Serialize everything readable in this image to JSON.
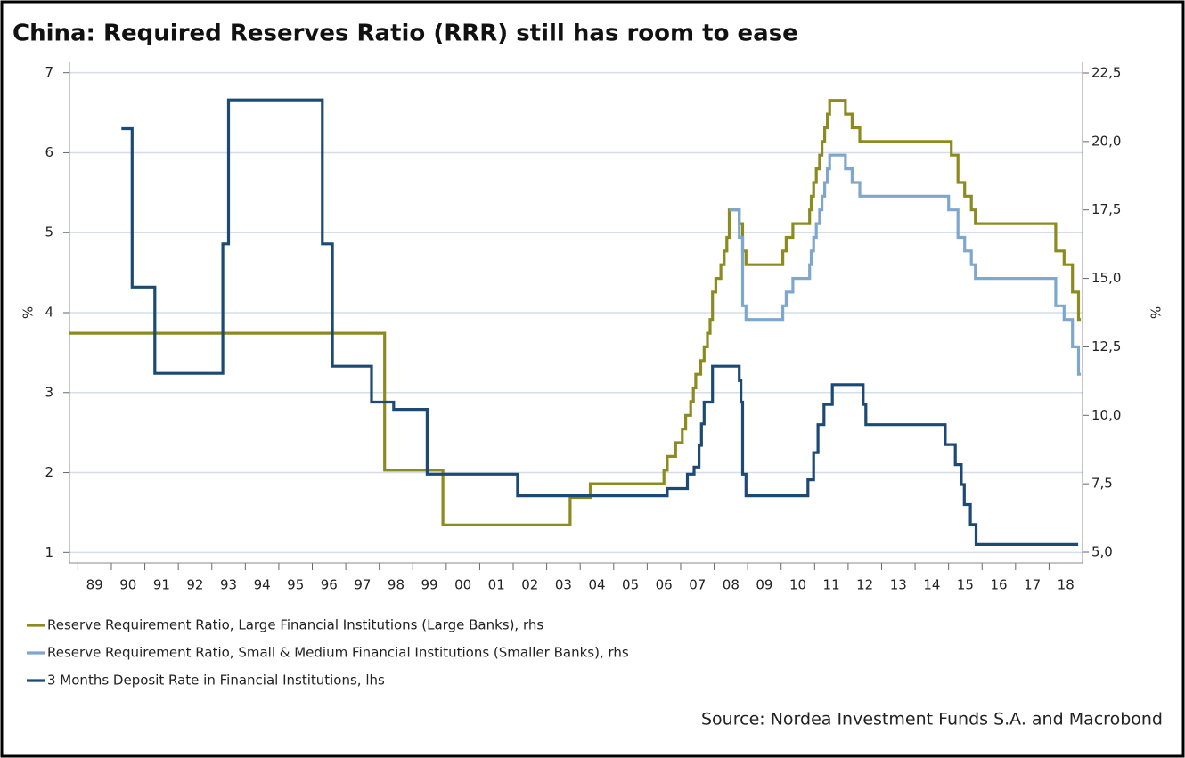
{
  "chart_data": {
    "type": "line",
    "title": "China: Required Reserves Ratio (RRR) still has room to ease",
    "source": "Source: Nordea Investment Funds S.A. and Macrobond",
    "ylabel": "%",
    "y2label": "%",
    "xlim": [
      1988.75,
      2019
    ],
    "ylim": [
      0.87,
      7.13
    ],
    "y2lim": [
      4.61,
      22.89
    ],
    "grid": true,
    "step": true,
    "xticks": [
      {
        "value": 1989,
        "label": "89"
      },
      {
        "value": 1990,
        "label": "90"
      },
      {
        "value": 1991,
        "label": "91"
      },
      {
        "value": 1992,
        "label": "92"
      },
      {
        "value": 1993,
        "label": "93"
      },
      {
        "value": 1994,
        "label": "94"
      },
      {
        "value": 1995,
        "label": "95"
      },
      {
        "value": 1996,
        "label": "96"
      },
      {
        "value": 1997,
        "label": "97"
      },
      {
        "value": 1998,
        "label": "98"
      },
      {
        "value": 1999,
        "label": "99"
      },
      {
        "value": 2000,
        "label": "00"
      },
      {
        "value": 2001,
        "label": "01"
      },
      {
        "value": 2002,
        "label": "02"
      },
      {
        "value": 2003,
        "label": "03"
      },
      {
        "value": 2004,
        "label": "04"
      },
      {
        "value": 2005,
        "label": "05"
      },
      {
        "value": 2006,
        "label": "06"
      },
      {
        "value": 2007,
        "label": "07"
      },
      {
        "value": 2008,
        "label": "08"
      },
      {
        "value": 2009,
        "label": "09"
      },
      {
        "value": 2010,
        "label": "10"
      },
      {
        "value": 2011,
        "label": "11"
      },
      {
        "value": 2012,
        "label": "12"
      },
      {
        "value": 2013,
        "label": "13"
      },
      {
        "value": 2014,
        "label": "14"
      },
      {
        "value": 2015,
        "label": "15"
      },
      {
        "value": 2016,
        "label": "16"
      },
      {
        "value": 2017,
        "label": "17"
      },
      {
        "value": 2018,
        "label": "18"
      }
    ],
    "yticks": [
      1,
      2,
      3,
      4,
      5,
      6,
      7
    ],
    "y2ticks": [
      {
        "value": 5,
        "label": "5,0"
      },
      {
        "value": 7.5,
        "label": "7,5"
      },
      {
        "value": 10,
        "label": "10,0"
      },
      {
        "value": 12.5,
        "label": "12,5"
      },
      {
        "value": 15,
        "label": "15,0"
      },
      {
        "value": 17.5,
        "label": "17,5"
      },
      {
        "value": 20,
        "label": "20,0"
      },
      {
        "value": 22.5,
        "label": "22,5"
      }
    ],
    "series": [
      {
        "name": "Reserve Requirement Ratio, Large Financial Institutions (Large Banks), rhs",
        "color": "#8b8b1f",
        "axis": "y2",
        "x": [
          1988.75,
          1998.16,
          1998.16,
          1999.9,
          1999.9,
          2003.7,
          2003.7,
          2004.3,
          2004.3,
          2006.5,
          2006.5,
          2006.6,
          2006.6,
          2006.85,
          2006.85,
          2007.05,
          2007.05,
          2007.15,
          2007.15,
          2007.3,
          2007.3,
          2007.38,
          2007.38,
          2007.45,
          2007.45,
          2007.6,
          2007.6,
          2007.7,
          2007.7,
          2007.8,
          2007.8,
          2007.88,
          2007.88,
          2007.95,
          2007.95,
          2008.05,
          2008.05,
          2008.2,
          2008.2,
          2008.3,
          2008.3,
          2008.38,
          2008.38,
          2008.45,
          2008.45,
          2008.75,
          2008.75,
          2008.85,
          2008.85,
          2008.95,
          2008.95,
          2010.05,
          2010.05,
          2010.15,
          2010.15,
          2010.35,
          2010.35,
          2010.85,
          2010.85,
          2010.9,
          2010.9,
          2010.97,
          2010.97,
          2011.05,
          2011.05,
          2011.15,
          2011.15,
          2011.22,
          2011.22,
          2011.3,
          2011.3,
          2011.38,
          2011.38,
          2011.45,
          2011.45,
          2011.92,
          2011.92,
          2012.12,
          2012.12,
          2012.35,
          2012.35,
          2015.08,
          2015.08,
          2015.28,
          2015.28,
          2015.48,
          2015.48,
          2015.68,
          2015.68,
          2015.8,
          2015.8,
          2018.2,
          2018.2,
          2018.45,
          2018.45,
          2018.7,
          2018.7,
          2018.88,
          2018.88,
          2018.95
        ],
        "values": [
          13,
          13,
          8,
          8,
          6,
          6,
          7,
          7,
          7.5,
          7.5,
          8,
          8,
          8.5,
          8.5,
          9,
          9,
          9.5,
          9.5,
          10,
          10,
          10.5,
          10.5,
          11,
          11,
          11.5,
          11.5,
          12,
          12,
          12.5,
          12.5,
          13,
          13,
          13.5,
          13.5,
          14.5,
          14.5,
          15,
          15,
          15.5,
          15.5,
          16,
          16,
          16.5,
          16.5,
          17.5,
          17.5,
          17,
          17,
          16,
          16,
          15.5,
          15.5,
          16,
          16,
          16.5,
          16.5,
          17,
          17,
          17.5,
          17.5,
          18,
          18,
          18.5,
          18.5,
          19,
          19,
          19.5,
          19.5,
          20,
          20,
          20.5,
          20.5,
          21,
          21,
          21.5,
          21.5,
          21,
          21,
          20.5,
          20.5,
          20,
          20,
          19.5,
          19.5,
          18.5,
          18.5,
          18,
          18,
          17.5,
          17.5,
          17,
          17,
          16,
          16,
          15.5,
          15.5,
          14.5,
          14.5,
          13.5,
          13.5
        ]
      },
      {
        "name": "Reserve Requirement Ratio, Small & Medium Financial Institutions (Smaller Banks), rhs",
        "color": "#7fa7cd",
        "axis": "y2",
        "x": [
          2008.45,
          2008.75,
          2008.75,
          2008.85,
          2008.85,
          2008.95,
          2008.95,
          2010.05,
          2010.05,
          2010.15,
          2010.15,
          2010.35,
          2010.35,
          2010.85,
          2010.85,
          2010.9,
          2010.9,
          2010.97,
          2010.97,
          2011.05,
          2011.05,
          2011.15,
          2011.15,
          2011.22,
          2011.22,
          2011.3,
          2011.3,
          2011.38,
          2011.38,
          2011.45,
          2011.45,
          2011.92,
          2011.92,
          2012.12,
          2012.12,
          2012.35,
          2012.35,
          2015.0,
          2015.0,
          2015.28,
          2015.28,
          2015.48,
          2015.48,
          2015.68,
          2015.68,
          2015.8,
          2015.8,
          2018.2,
          2018.2,
          2018.45,
          2018.45,
          2018.7,
          2018.7,
          2018.88,
          2018.88,
          2018.95
        ],
        "values": [
          17.5,
          17.5,
          16.5,
          16.5,
          14,
          14,
          13.5,
          13.5,
          14,
          14,
          14.5,
          14.5,
          15,
          15,
          15.5,
          15.5,
          16,
          16,
          16.5,
          16.5,
          17,
          17,
          17.5,
          17.5,
          18,
          18,
          18.5,
          18.5,
          19,
          19,
          19.5,
          19.5,
          19,
          19,
          18.5,
          18.5,
          18,
          18,
          17.5,
          17.5,
          16.5,
          16.5,
          16,
          16,
          15.5,
          15.5,
          15,
          15,
          14,
          14,
          13.5,
          13.5,
          12.5,
          12.5,
          11.5,
          11.5
        ]
      },
      {
        "name": "3 Months Deposit Rate in Financial Institutions, lhs",
        "color": "#1c4a74",
        "axis": "y",
        "x": [
          1990.3,
          1990.62,
          1990.62,
          1991.3,
          1991.3,
          1993.33,
          1993.33,
          1993.5,
          1993.5,
          1996.3,
          1996.3,
          1996.6,
          1996.6,
          1997.77,
          1997.77,
          1998.43,
          1998.43,
          1999.43,
          1999.43,
          2002.13,
          2002.13,
          2006.6,
          2006.6,
          2007.2,
          2007.2,
          2007.4,
          2007.4,
          2007.55,
          2007.55,
          2007.62,
          2007.62,
          2007.7,
          2007.7,
          2007.95,
          2007.95,
          2008.75,
          2008.75,
          2008.8,
          2008.8,
          2008.85,
          2008.85,
          2008.95,
          2008.95,
          2010.8,
          2010.8,
          2010.97,
          2010.97,
          2011.1,
          2011.1,
          2011.28,
          2011.28,
          2011.53,
          2011.53,
          2012.45,
          2012.45,
          2012.53,
          2012.53,
          2014.9,
          2014.9,
          2015.2,
          2015.2,
          2015.38,
          2015.38,
          2015.47,
          2015.47,
          2015.65,
          2015.65,
          2015.82,
          2015.82,
          2018.87
        ],
        "values": [
          6.3,
          6.3,
          4.32,
          4.32,
          3.24,
          3.24,
          4.86,
          4.86,
          6.66,
          6.66,
          4.86,
          4.86,
          3.33,
          3.33,
          2.88,
          2.88,
          2.79,
          2.79,
          1.98,
          1.98,
          1.71,
          1.71,
          1.8,
          1.8,
          1.98,
          1.98,
          2.07,
          2.07,
          2.34,
          2.34,
          2.61,
          2.61,
          2.88,
          2.88,
          3.33,
          3.33,
          3.15,
          3.15,
          2.88,
          2.88,
          1.98,
          1.98,
          1.71,
          1.71,
          1.91,
          1.91,
          2.25,
          2.25,
          2.6,
          2.6,
          2.85,
          2.85,
          3.1,
          3.1,
          2.85,
          2.85,
          2.6,
          2.6,
          2.35,
          2.35,
          2.1,
          2.1,
          1.85,
          1.85,
          1.6,
          1.6,
          1.35,
          1.35,
          1.1,
          1.1
        ]
      }
    ]
  }
}
